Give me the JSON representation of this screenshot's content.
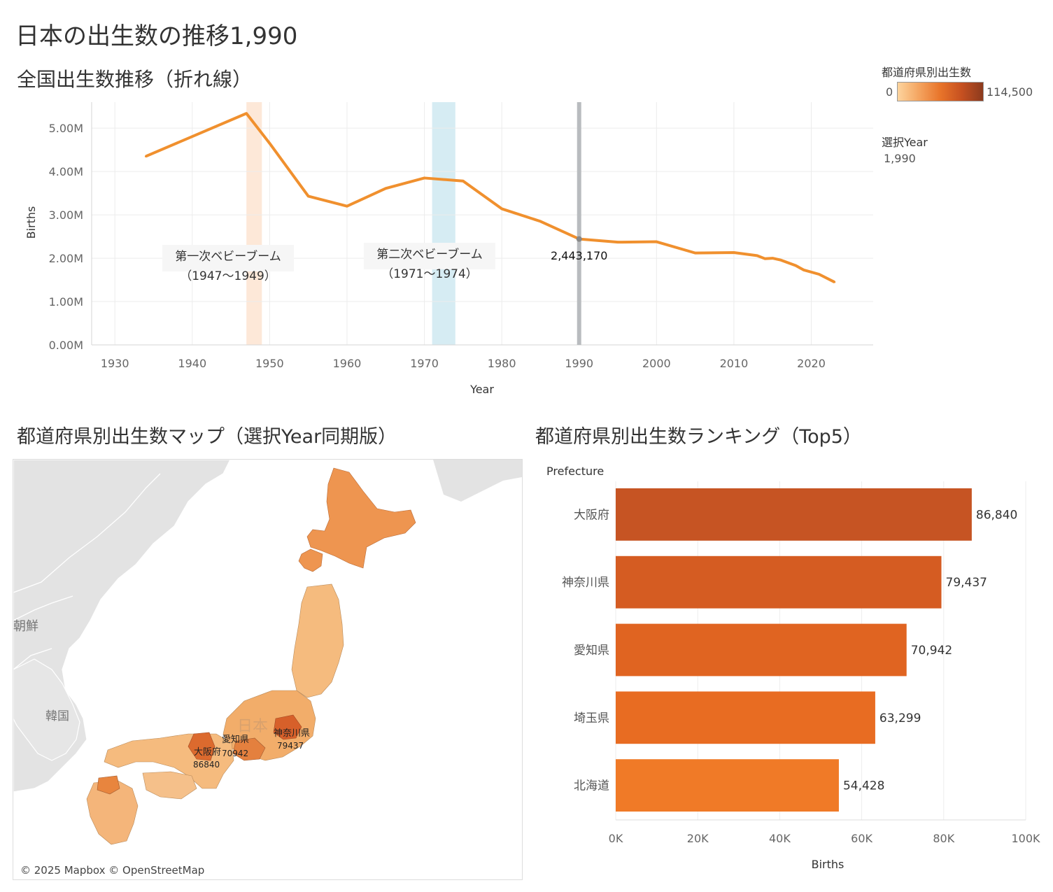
{
  "header": {
    "title": "日本の出生数の推移1,990"
  },
  "legend": {
    "title": "都道府県別出生数",
    "min": "0",
    "max": "114,500",
    "ramp": [
      "#fdd49e",
      "#f4a460",
      "#e8742a",
      "#c65020",
      "#8b3a1e"
    ]
  },
  "parameter": {
    "title": "選択Year",
    "value": "1,990"
  },
  "map": {
    "title": "都道府県別出生数マップ（選択Year同期版）",
    "attribution": "© 2025 Mapbox © OpenStreetMap",
    "country_labels": [
      "朝鮮",
      "韓国",
      "日本"
    ],
    "labels": [
      {
        "pref": "神奈川県",
        "value": "79437"
      },
      {
        "pref": "愛知県",
        "value": "70942"
      },
      {
        "pref": "大阪府",
        "value": "86840"
      }
    ]
  },
  "chart_data": [
    {
      "type": "line",
      "title": "全国出生数推移（折れ線）",
      "xlabel": "Year",
      "ylabel": "Births",
      "xlim": [
        1927,
        2028
      ],
      "ylim": [
        0,
        5600000
      ],
      "x_ticks": [
        "1930",
        "1940",
        "1950",
        "1960",
        "1970",
        "1980",
        "1990",
        "2000",
        "2010",
        "2020"
      ],
      "y_ticks": [
        {
          "value": 0,
          "label": "0.00M"
        },
        {
          "value": 1000000,
          "label": "1.00M"
        },
        {
          "value": 2000000,
          "label": "2.00M"
        },
        {
          "value": 3000000,
          "label": "3.00M"
        },
        {
          "value": 4000000,
          "label": "4.00M"
        },
        {
          "value": 5000000,
          "label": "5.00M"
        }
      ],
      "x": [
        1934,
        1947,
        1950,
        1955,
        1960,
        1965,
        1970,
        1975,
        1980,
        1985,
        1990,
        1995,
        2000,
        2005,
        2010,
        2013,
        2014,
        2015,
        2016,
        2018,
        2019,
        2021,
        2023
      ],
      "y": [
        4350000,
        5340000,
        4650000,
        3430000,
        3200000,
        3610000,
        3850000,
        3780000,
        3140000,
        2850000,
        2443170,
        2370000,
        2380000,
        2120000,
        2130000,
        2060000,
        1990000,
        2000000,
        1960000,
        1830000,
        1730000,
        1630000,
        1450000
      ],
      "selected": {
        "year": 1990,
        "value": 2443170,
        "label": "2,443,170"
      },
      "bands": [
        {
          "from": 1947,
          "to": 1949,
          "color": "#fde8d8",
          "line1": "第一次ベビーブーム",
          "line2": "（1947～1949）"
        },
        {
          "from": 1971,
          "to": 1974,
          "color": "#d6ecf3",
          "line1": "第二次ベビーブーム",
          "line2": "（1971～1974）"
        }
      ],
      "colors": {
        "line": "#f0902e",
        "selected_line": "#b9bcbf"
      },
      "grid": true
    },
    {
      "type": "bar",
      "orientation": "horizontal",
      "title": "都道府県別出生数ランキング（Top5）",
      "ylabel": "Prefecture",
      "xlabel": "Births",
      "categories": [
        "大阪府",
        "神奈川県",
        "愛知県",
        "埼玉県",
        "北海道"
      ],
      "values": [
        86840,
        79437,
        70942,
        63299,
        54428
      ],
      "value_labels": [
        "86,840",
        "79,437",
        "70,942",
        "63,299",
        "54,428"
      ],
      "colors": [
        "#c65423",
        "#d55c22",
        "#e06421",
        "#e86c22",
        "#f07a27"
      ],
      "xlim": [
        0,
        100000
      ],
      "x_ticks": [
        {
          "value": 0,
          "label": "0K"
        },
        {
          "value": 20000,
          "label": "20K"
        },
        {
          "value": 40000,
          "label": "40K"
        },
        {
          "value": 60000,
          "label": "60K"
        },
        {
          "value": 80000,
          "label": "80K"
        },
        {
          "value": 100000,
          "label": "100K"
        }
      ],
      "grid": true
    }
  ]
}
